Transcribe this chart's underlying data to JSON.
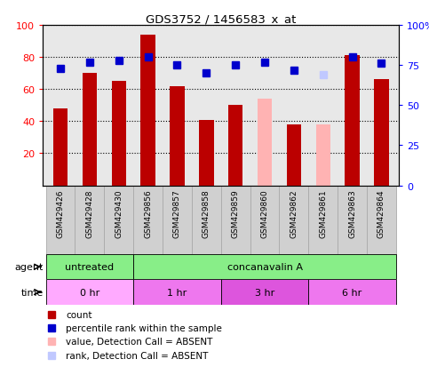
{
  "title": "GDS3752 / 1456583_x_at",
  "samples": [
    "GSM429426",
    "GSM429428",
    "GSM429430",
    "GSM429856",
    "GSM429857",
    "GSM429858",
    "GSM429859",
    "GSM429860",
    "GSM429862",
    "GSM429861",
    "GSM429863",
    "GSM429864"
  ],
  "bar_values": [
    48,
    70,
    65,
    94,
    62,
    41,
    50,
    null,
    38,
    null,
    81,
    66
  ],
  "absent_bar_values": [
    null,
    null,
    null,
    null,
    null,
    null,
    null,
    54,
    null,
    38,
    null,
    null
  ],
  "rank_values": [
    73,
    77,
    78,
    80,
    75,
    70,
    75,
    77,
    72,
    72,
    80,
    76
  ],
  "absent_rank_values": [
    null,
    null,
    null,
    null,
    null,
    null,
    null,
    null,
    null,
    69,
    null,
    null
  ],
  "bar_color": "#bb0000",
  "absent_bar_color": "#ffb3b3",
  "rank_color": "#0000cc",
  "absent_rank_color": "#c0c8ff",
  "ylim_left": [
    0,
    100
  ],
  "ylim_right": [
    0,
    100
  ],
  "yticks_left": [
    20,
    40,
    60,
    80,
    100
  ],
  "ytick_labels_left": [
    "20",
    "40",
    "60",
    "80",
    "100"
  ],
  "yticks_right": [
    0,
    25,
    50,
    75,
    100
  ],
  "ytick_labels_right": [
    "0",
    "25",
    "50",
    "75",
    "100%"
  ],
  "agent_groups": [
    {
      "label": "untreated",
      "start": 0,
      "end": 3,
      "color": "#88ee88"
    },
    {
      "label": "concanavalin A",
      "start": 3,
      "end": 12,
      "color": "#88ee88"
    }
  ],
  "time_groups": [
    {
      "label": "0 hr",
      "start": 0,
      "end": 3,
      "color": "#ffaaff"
    },
    {
      "label": "1 hr",
      "start": 3,
      "end": 6,
      "color": "#ee77ee"
    },
    {
      "label": "3 hr",
      "start": 6,
      "end": 9,
      "color": "#dd55dd"
    },
    {
      "label": "6 hr",
      "start": 9,
      "end": 12,
      "color": "#ee77ee"
    }
  ],
  "legend_items": [
    {
      "label": "count",
      "color": "#bb0000"
    },
    {
      "label": "percentile rank within the sample",
      "color": "#0000cc"
    },
    {
      "label": "value, Detection Call = ABSENT",
      "color": "#ffb3b3"
    },
    {
      "label": "rank, Detection Call = ABSENT",
      "color": "#c0c8ff"
    }
  ],
  "plot_bg_color": "#e8e8e8",
  "sample_box_color": "#d0d0d0",
  "background_color": "#ffffff",
  "bar_width": 0.5,
  "agent_label": "agent",
  "time_label": "time"
}
